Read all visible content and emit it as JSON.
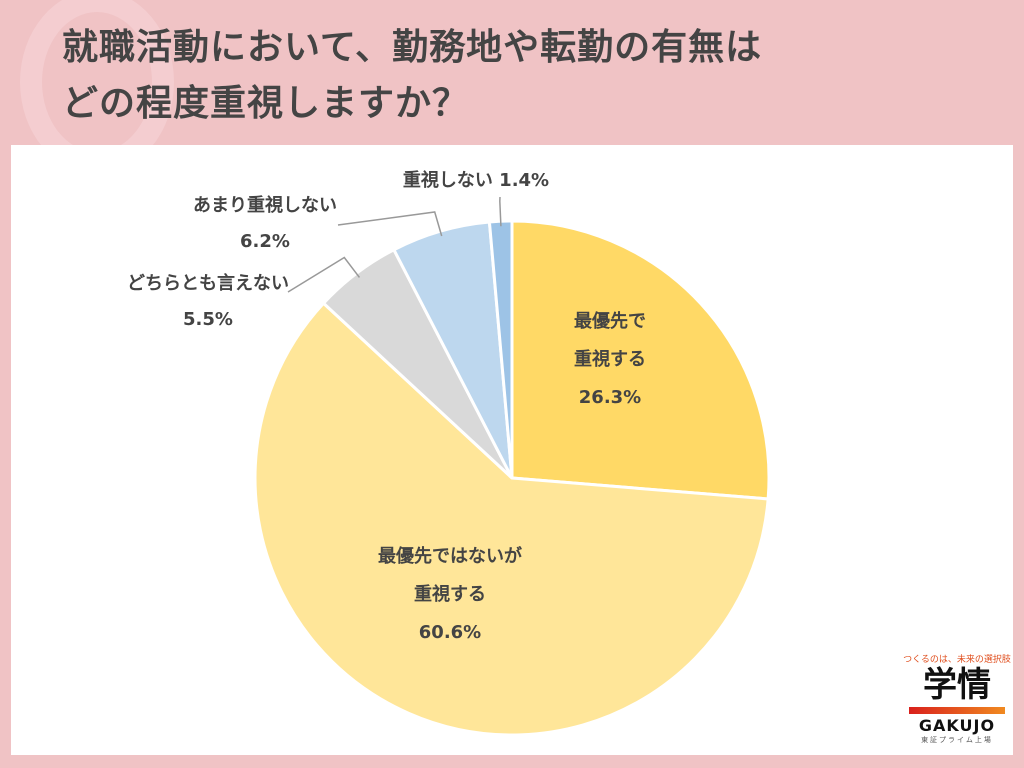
{
  "title_lines": [
    "就職活動において、勤務地や転勤の有無は",
    "どの程度重視しますか？"
  ],
  "chart_data": {
    "type": "pie",
    "start": "12 o'clock, clockwise",
    "slices": [
      {
        "label": "最優先で重視する",
        "value": 26.3,
        "value_label": "26.3%",
        "color": "#ffd966"
      },
      {
        "label": "最優先ではないが重視する",
        "value": 60.6,
        "value_label": "60.6%",
        "color": "#ffe699"
      },
      {
        "label": "どちらとも言えない",
        "value": 5.5,
        "value_label": "5.5%",
        "color": "#d9d9d9"
      },
      {
        "label": "あまり重視しない",
        "value": 6.2,
        "value_label": "6.2%",
        "color": "#bdd7ee"
      },
      {
        "label": "重視しない",
        "value": 1.4,
        "value_label": "1.4%",
        "color": "#9dc3e6"
      }
    ]
  },
  "labels": {
    "s0": [
      "最優先で",
      "重視する",
      "26.3%"
    ],
    "s1": [
      "最優先ではないが",
      "重視する",
      "60.6%"
    ],
    "s2": [
      "どちらとも言えない",
      "5.5%"
    ],
    "s3": [
      "あまり重視しない",
      "6.2%"
    ],
    "s4": "重視しない 1.4%"
  },
  "logo": {
    "tagline": "つくるのは、未来の選択肢",
    "kanji": "学情",
    "name": "GAKUJO",
    "sub": "東証プライム上場"
  }
}
